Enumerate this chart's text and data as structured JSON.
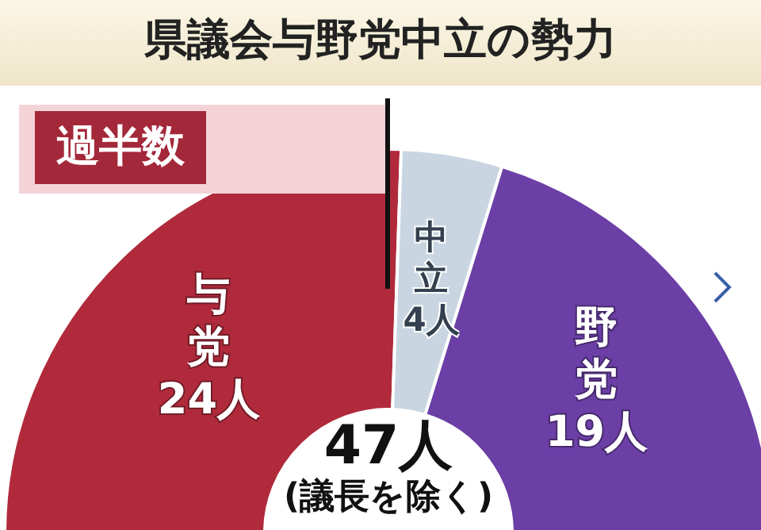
{
  "chart_data": {
    "type": "donut",
    "title": "県議会与野党中立の勢力",
    "categories": [
      "与党",
      "中立",
      "野党"
    ],
    "values": [
      24,
      4,
      19
    ],
    "value_labels": [
      "24人",
      "4人",
      "19人"
    ],
    "colors": [
      "#b02a3c",
      "#c9d6e2",
      "#6b3fa6"
    ],
    "annotations": [
      "過半数",
      "47人",
      "(議長を除く)"
    ],
    "legend": false
  }
}
